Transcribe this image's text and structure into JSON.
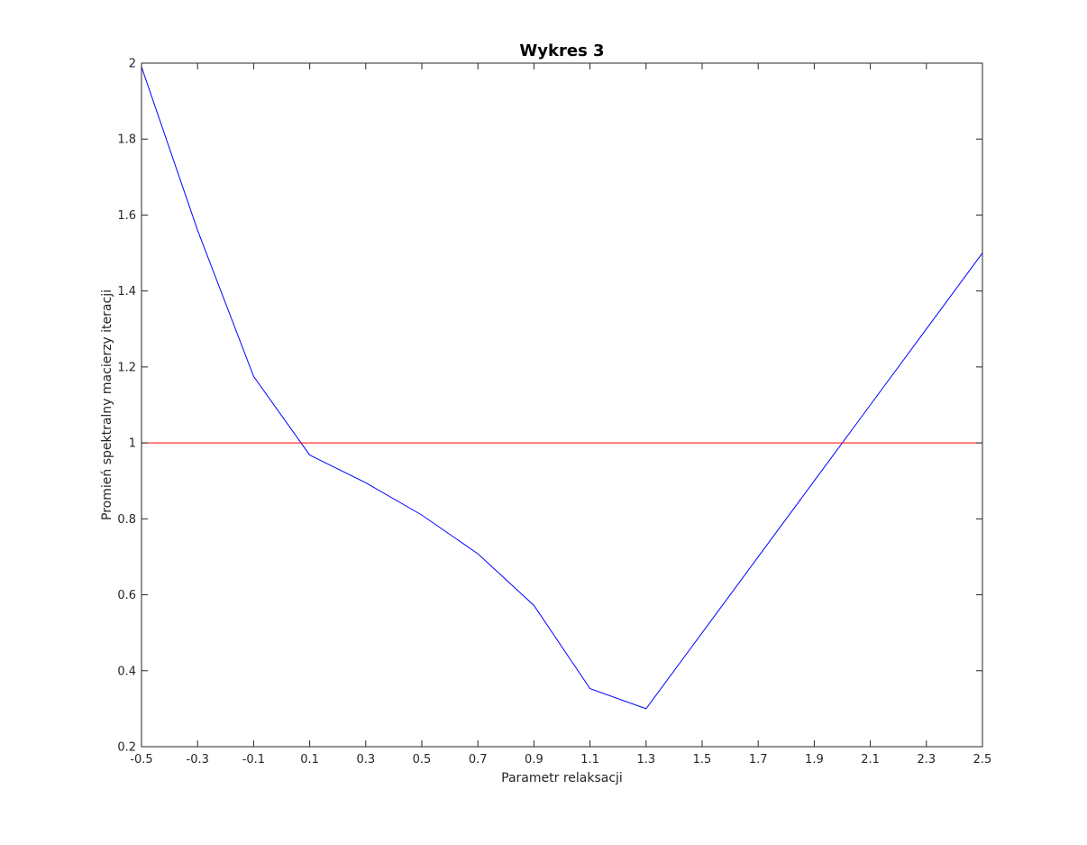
{
  "chart_data": {
    "type": "line",
    "title": "Wykres 3",
    "xlabel": "Parametr relaksacji",
    "ylabel": "Promień spektralny macierzy iteracji",
    "xlim": [
      -0.5,
      2.5
    ],
    "ylim": [
      0.2,
      2.0
    ],
    "xticks": [
      -0.5,
      -0.3,
      -0.1,
      0.1,
      0.3,
      0.5,
      0.7,
      0.9,
      1.1,
      1.3,
      1.5,
      1.7,
      1.9,
      2.1,
      2.3,
      2.5
    ],
    "xtick_labels": [
      "-0.5",
      "-0.3",
      "-0.1",
      "0.1",
      "0.3",
      "0.5",
      "0.7",
      "0.9",
      "1.1",
      "1.3",
      "1.5",
      "1.7",
      "1.9",
      "2.1",
      "2.3",
      "2.5"
    ],
    "yticks": [
      0.2,
      0.4,
      0.6,
      0.8,
      1.0,
      1.2,
      1.4,
      1.6,
      1.8,
      2.0
    ],
    "ytick_labels": [
      "0.2",
      "0.4",
      "0.6",
      "0.8",
      "1",
      "1.2",
      "1.4",
      "1.6",
      "1.8",
      "2"
    ],
    "grid": false,
    "legend": "none",
    "series": [
      {
        "color": "#0000ff",
        "x": [
          -0.5,
          -0.3,
          -0.1,
          0.1,
          0.3,
          0.5,
          0.7,
          0.9,
          1.1,
          1.3,
          1.5,
          1.7,
          1.9,
          2.1,
          2.3,
          2.5
        ],
        "y": [
          1.99,
          1.56,
          1.175,
          0.968,
          0.895,
          0.81,
          0.708,
          0.572,
          0.353,
          0.3,
          0.5,
          0.7,
          0.9,
          1.1,
          1.3,
          1.5
        ]
      },
      {
        "color": "#ff0000",
        "x": [
          -0.5,
          2.5
        ],
        "y": [
          1.0,
          1.0
        ]
      }
    ]
  }
}
